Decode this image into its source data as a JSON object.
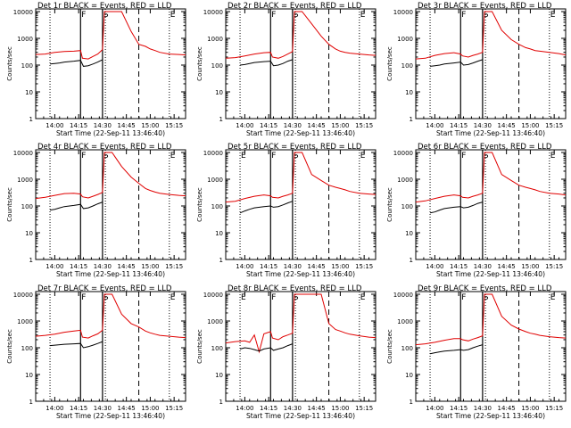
{
  "colors": {
    "events": "#000000",
    "lld": "#e00000",
    "axis": "#000000"
  },
  "common": {
    "ylabel": "Counts/sec",
    "xlabel": "Start Time (22-Sep-11 13:46:40)",
    "x_ticks": [
      "14:00",
      "14:15",
      "14:30",
      "14:45",
      "15:00",
      "15:15"
    ],
    "y_ticks": [
      "1",
      "10",
      "100",
      "1000",
      "10000"
    ],
    "xlim": [
      13.8,
      15.37
    ],
    "ylim_log10": [
      0,
      4.1
    ],
    "vlines_dotted": [
      13.95,
      14.53,
      15.2
    ],
    "vlines_solid": [
      14.27,
      14.5
    ],
    "vlines_dashed": [
      14.88
    ]
  },
  "chart_data": [
    {
      "type": "line",
      "title": "Det 1r BLACK = Events, RED = LLD",
      "letters": [
        "",
        "F",
        "S",
        "",
        "E"
      ],
      "series": [
        {
          "name": "LLD",
          "x": [
            13.8,
            13.9,
            14.0,
            14.1,
            14.2,
            14.27,
            14.29,
            14.35,
            14.4,
            14.45,
            14.5,
            14.52,
            14.55,
            14.6,
            14.7,
            14.8,
            14.88,
            14.95,
            15.0,
            15.05,
            15.1,
            15.2,
            15.3,
            15.37
          ],
          "y": [
            250,
            260,
            300,
            320,
            330,
            350,
            180,
            170,
            210,
            260,
            380,
            10000,
            10000,
            10000,
            10000,
            1800,
            600,
            500,
            400,
            350,
            300,
            260,
            250,
            240
          ]
        },
        {
          "name": "Events",
          "x": [
            13.95,
            14.0,
            14.05,
            14.1,
            14.2,
            14.27,
            14.3,
            14.35,
            14.4,
            14.45,
            14.5
          ],
          "y": [
            110,
            115,
            120,
            130,
            140,
            150,
            90,
            95,
            110,
            130,
            160
          ]
        }
      ]
    },
    {
      "type": "line",
      "title": "Det 2r BLACK = Events, RED = LLD",
      "letters": [
        "",
        "F",
        "S",
        "",
        "E"
      ],
      "series": [
        {
          "name": "LLD",
          "x": [
            13.8,
            13.9,
            14.0,
            14.1,
            14.2,
            14.27,
            14.29,
            14.35,
            14.4,
            14.45,
            14.5,
            14.52,
            14.55,
            14.6,
            14.7,
            14.8,
            14.88,
            14.95,
            15.0,
            15.05,
            15.1,
            15.2,
            15.3,
            15.37
          ],
          "y": [
            180,
            190,
            220,
            260,
            290,
            300,
            200,
            180,
            210,
            260,
            320,
            10000,
            10000,
            10000,
            3500,
            1200,
            600,
            400,
            330,
            300,
            280,
            260,
            240,
            230
          ]
        },
        {
          "name": "Events",
          "x": [
            13.95,
            14.0,
            14.05,
            14.1,
            14.2,
            14.27,
            14.3,
            14.35,
            14.4,
            14.45,
            14.5
          ],
          "y": [
            100,
            105,
            115,
            125,
            135,
            140,
            95,
            100,
            115,
            140,
            160
          ]
        }
      ]
    },
    {
      "type": "line",
      "title": "Det 3r BLACK = Events, RED = LLD",
      "letters": [
        "",
        "F",
        "S",
        "",
        "E"
      ],
      "series": [
        {
          "name": "LLD",
          "x": [
            13.8,
            13.9,
            14.0,
            14.1,
            14.2,
            14.27,
            14.29,
            14.35,
            14.4,
            14.45,
            14.5,
            14.52,
            14.55,
            14.6,
            14.7,
            14.8,
            14.88,
            14.95,
            15.0,
            15.05,
            15.1,
            15.2,
            15.3,
            15.37
          ],
          "y": [
            170,
            180,
            230,
            270,
            290,
            260,
            220,
            200,
            230,
            260,
            300,
            10000,
            10000,
            10000,
            2000,
            900,
            600,
            450,
            400,
            350,
            330,
            300,
            270,
            240
          ]
        },
        {
          "name": "Events",
          "x": [
            13.95,
            14.0,
            14.05,
            14.1,
            14.2,
            14.27,
            14.3,
            14.35,
            14.4,
            14.45,
            14.5
          ],
          "y": [
            90,
            95,
            100,
            110,
            120,
            130,
            100,
            105,
            120,
            140,
            160
          ]
        }
      ]
    },
    {
      "type": "line",
      "title": "Det 4r BLACK = Events, RED = LLD",
      "letters": [
        "",
        "F",
        "S",
        "",
        "E"
      ],
      "series": [
        {
          "name": "LLD",
          "x": [
            13.8,
            13.9,
            14.0,
            14.1,
            14.2,
            14.27,
            14.29,
            14.35,
            14.4,
            14.45,
            14.5,
            14.52,
            14.55,
            14.6,
            14.7,
            14.8,
            14.88,
            14.95,
            15.0,
            15.05,
            15.1,
            15.2,
            15.3,
            15.37
          ],
          "y": [
            190,
            210,
            250,
            290,
            300,
            280,
            220,
            200,
            230,
            270,
            320,
            10000,
            10000,
            10000,
            3000,
            1200,
            700,
            450,
            380,
            330,
            300,
            270,
            250,
            240
          ]
        },
        {
          "name": "Events",
          "x": [
            13.95,
            14.0,
            14.05,
            14.1,
            14.2,
            14.27,
            14.3,
            14.35,
            14.4,
            14.45,
            14.5
          ],
          "y": [
            70,
            75,
            85,
            95,
            105,
            115,
            80,
            85,
            100,
            120,
            140
          ]
        }
      ]
    },
    {
      "type": "line",
      "title": "Det 5r BLACK = Events, RED = LLD",
      "letters": [
        "E",
        "F",
        "S",
        "",
        "E"
      ],
      "series": [
        {
          "name": "LLD",
          "x": [
            13.8,
            13.9,
            14.0,
            14.1,
            14.2,
            14.27,
            14.29,
            14.35,
            14.4,
            14.45,
            14.5,
            14.52,
            14.55,
            14.6,
            14.7,
            14.8,
            14.88,
            14.95,
            15.0,
            15.05,
            15.1,
            15.2,
            15.3,
            15.37
          ],
          "y": [
            140,
            150,
            190,
            230,
            260,
            240,
            210,
            200,
            230,
            260,
            300,
            10000,
            10000,
            10000,
            1500,
            900,
            600,
            500,
            450,
            400,
            350,
            300,
            280,
            270
          ]
        },
        {
          "name": "Events",
          "x": [
            13.95,
            14.0,
            14.05,
            14.1,
            14.2,
            14.27,
            14.3,
            14.35,
            14.4,
            14.45,
            14.5
          ],
          "y": [
            55,
            65,
            75,
            85,
            95,
            100,
            90,
            95,
            110,
            130,
            150
          ]
        }
      ]
    },
    {
      "type": "line",
      "title": "Det 6r BLACK = Events, RED = LLD",
      "letters": [
        "",
        "F",
        "S",
        "",
        "E"
      ],
      "series": [
        {
          "name": "LLD",
          "x": [
            13.8,
            13.9,
            14.0,
            14.1,
            14.2,
            14.27,
            14.29,
            14.35,
            14.4,
            14.45,
            14.5,
            14.52,
            14.55,
            14.6,
            14.7,
            14.8,
            14.88,
            14.95,
            15.0,
            15.05,
            15.1,
            15.2,
            15.3,
            15.37
          ],
          "y": [
            140,
            155,
            190,
            230,
            260,
            240,
            210,
            200,
            230,
            260,
            300,
            10000,
            10000,
            10000,
            1500,
            900,
            600,
            500,
            450,
            400,
            350,
            300,
            280,
            260
          ]
        },
        {
          "name": "Events",
          "x": [
            13.95,
            14.0,
            14.05,
            14.1,
            14.2,
            14.27,
            14.3,
            14.35,
            14.4,
            14.45,
            14.5
          ],
          "y": [
            55,
            60,
            70,
            80,
            90,
            95,
            85,
            90,
            105,
            125,
            140
          ]
        }
      ]
    },
    {
      "type": "line",
      "title": "Det 7r BLACK = Events, RED = LLD",
      "letters": [
        "",
        "F",
        "S",
        "",
        "E"
      ],
      "series": [
        {
          "name": "LLD",
          "x": [
            13.8,
            13.9,
            14.0,
            14.1,
            14.2,
            14.27,
            14.29,
            14.35,
            14.4,
            14.45,
            14.5,
            14.52,
            14.55,
            14.6,
            14.7,
            14.8,
            14.88,
            14.95,
            15.0,
            15.05,
            15.1,
            15.2,
            15.3,
            15.37
          ],
          "y": [
            270,
            290,
            320,
            380,
            420,
            450,
            250,
            230,
            280,
            330,
            450,
            10000,
            10000,
            10000,
            1800,
            800,
            600,
            420,
            360,
            320,
            290,
            270,
            250,
            240
          ]
        },
        {
          "name": "Events",
          "x": [
            13.95,
            14.0,
            14.05,
            14.1,
            14.2,
            14.27,
            14.3,
            14.35,
            14.4,
            14.45,
            14.5
          ],
          "y": [
            120,
            125,
            130,
            135,
            140,
            145,
            100,
            110,
            125,
            145,
            170
          ]
        }
      ]
    },
    {
      "type": "line",
      "title": "Det 8r BLACK = Events, RED = LLD",
      "letters": [
        "E",
        "F",
        "S",
        "",
        "E"
      ],
      "series": [
        {
          "name": "LLD",
          "x": [
            13.8,
            13.9,
            14.0,
            14.05,
            14.1,
            14.15,
            14.2,
            14.27,
            14.29,
            14.35,
            14.4,
            14.45,
            14.5,
            14.52,
            14.55,
            14.6,
            14.7,
            14.8,
            14.88,
            14.95,
            15.0,
            15.05,
            15.1,
            15.2,
            15.3,
            15.37
          ],
          "y": [
            150,
            170,
            180,
            160,
            300,
            70,
            330,
            400,
            230,
            200,
            260,
            300,
            350,
            10000,
            10000,
            10000,
            10000,
            10000,
            800,
            480,
            420,
            360,
            320,
            280,
            250,
            240
          ]
        },
        {
          "name": "Events",
          "x": [
            13.95,
            14.0,
            14.05,
            14.1,
            14.15,
            14.2,
            14.27,
            14.3,
            14.35,
            14.4,
            14.45,
            14.5
          ],
          "y": [
            90,
            100,
            95,
            85,
            75,
            90,
            100,
            80,
            90,
            100,
            120,
            140
          ]
        }
      ]
    },
    {
      "type": "line",
      "title": "Det 9r BLACK = Events, RED = LLD",
      "letters": [
        "",
        "F",
        "S",
        "",
        "E"
      ],
      "series": [
        {
          "name": "LLD",
          "x": [
            13.8,
            13.9,
            14.0,
            14.1,
            14.2,
            14.27,
            14.29,
            14.35,
            14.4,
            14.45,
            14.5,
            14.52,
            14.55,
            14.6,
            14.7,
            14.8,
            14.88,
            14.95,
            15.0,
            15.05,
            15.1,
            15.2,
            15.3,
            15.37
          ],
          "y": [
            130,
            140,
            160,
            190,
            220,
            220,
            200,
            180,
            210,
            240,
            280,
            10000,
            10000,
            10000,
            1500,
            700,
            500,
            400,
            350,
            320,
            290,
            260,
            240,
            230
          ]
        },
        {
          "name": "Events",
          "x": [
            13.95,
            14.0,
            14.05,
            14.1,
            14.2,
            14.27,
            14.3,
            14.35,
            14.4,
            14.45,
            14.5
          ],
          "y": [
            60,
            65,
            70,
            75,
            80,
            85,
            80,
            85,
            100,
            115,
            130
          ]
        }
      ]
    }
  ]
}
